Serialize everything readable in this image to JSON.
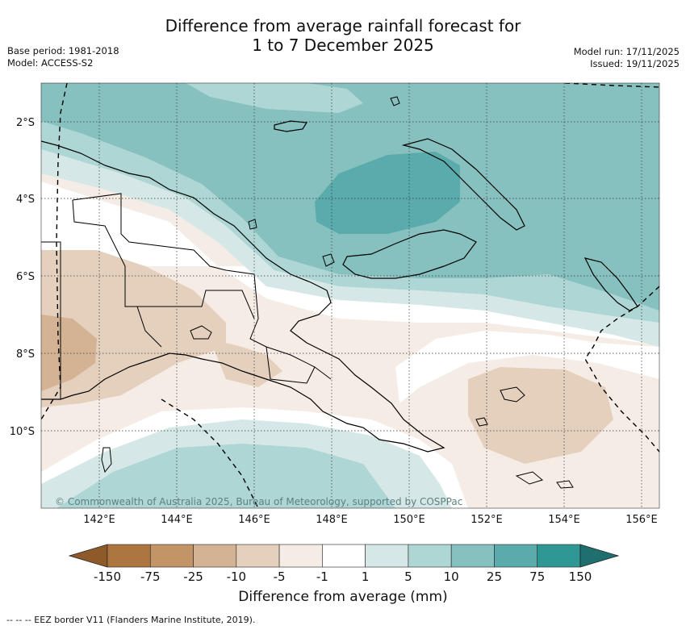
{
  "title": {
    "line1": "Difference from average rainfall forecast for",
    "line2": "1 to 7 December 2025"
  },
  "meta": {
    "base_period": "Base period: 1981-2018",
    "model": "Model: ACCESS-S2",
    "model_run": "Model run: 17/11/2025",
    "issued": "Issued: 19/11/2025"
  },
  "map": {
    "copyright": "© Commonwealth of Australia 2025, Bureau of Meteorology, supported by COSPPac",
    "lat_labels": [
      "2°S",
      "4°S",
      "6°S",
      "8°S",
      "10°S"
    ],
    "lon_labels": [
      "142°E",
      "144°E",
      "146°E",
      "148°E",
      "150°E",
      "152°E",
      "154°E",
      "156°E"
    ]
  },
  "colorbar": {
    "title": "Difference from average (mm)",
    "ticks": [
      "-150",
      "-75",
      "-25",
      "-10",
      "-5",
      "-1",
      "1",
      "5",
      "10",
      "25",
      "75",
      "150"
    ],
    "colors": {
      "under": "#8f5a2a",
      "bins": [
        "#ad7540",
        "#c29466",
        "#d4b394",
        "#e4d0bd",
        "#f4ece5",
        "#ffffff",
        "#d5e8e7",
        "#aed6d4",
        "#86c1c0",
        "#5aabab",
        "#2f9794"
      ],
      "over": "#1f6f6e"
    }
  },
  "footer": "--  --  -- EEZ border V11 (Flanders Marine Institute, 2019)."
}
